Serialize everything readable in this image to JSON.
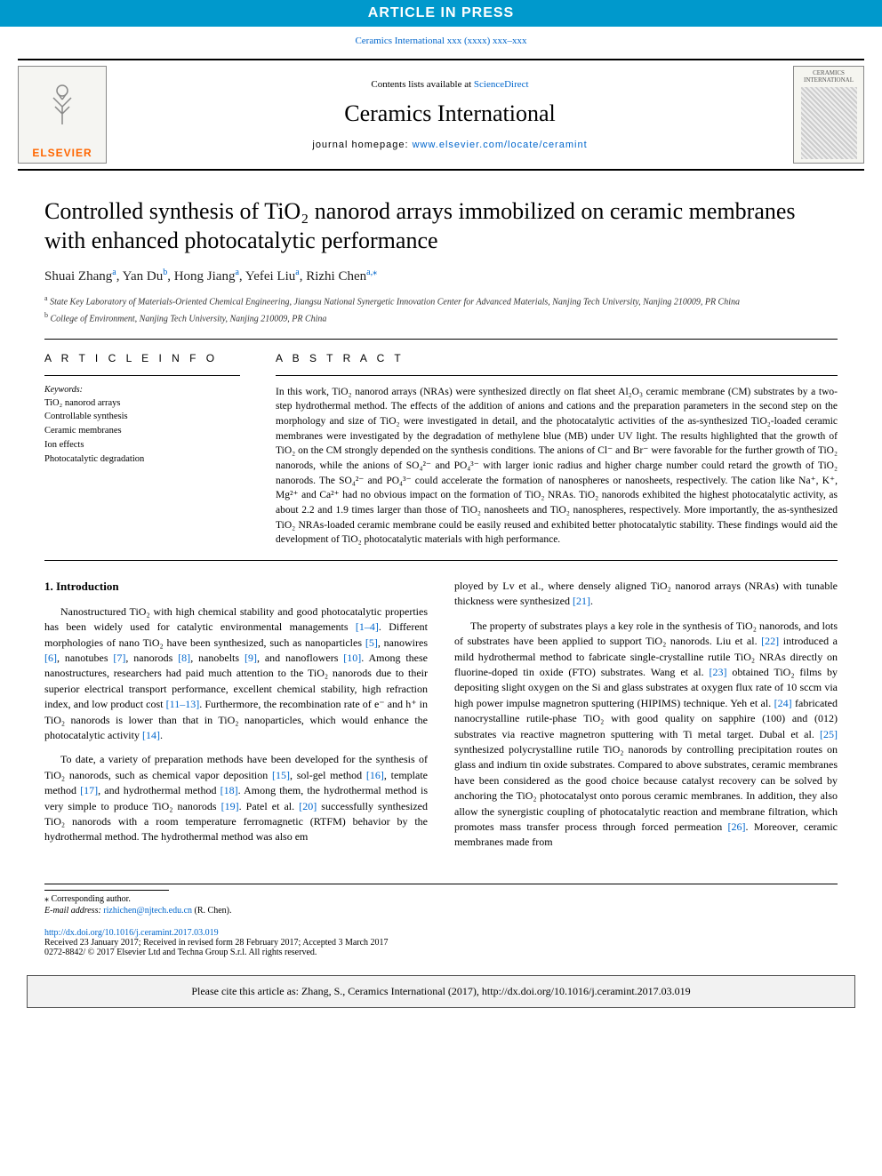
{
  "banner": "ARTICLE IN PRESS",
  "top_citation": "Ceramics International xxx (xxxx) xxx–xxx",
  "masthead": {
    "elsevier": "ELSEVIER",
    "contents_pre": "Contents lists available at ",
    "contents_link": "ScienceDirect",
    "journal": "Ceramics International",
    "homepage_pre": "journal homepage: ",
    "homepage_link": "www.elsevier.com/locate/ceramint",
    "cover_label": "CERAMICS INTERNATIONAL"
  },
  "title": "Controlled synthesis of TiO₂ nanorod arrays immobilized on ceramic membranes with enhanced photocatalytic performance",
  "authors_html": "Shuai Zhang<span class='sup'>a</span>, Yan Du<span class='sup'>b</span>, Hong Jiang<span class='sup'>a</span>, Yefei Liu<span class='sup'>a</span>, Rizhi Chen<span class='sup'>a,</span><span class='star'>⁎</span>",
  "affiliations": [
    {
      "sup": "a",
      "text": "State Key Laboratory of Materials-Oriented Chemical Engineering, Jiangsu National Synergetic Innovation Center for Advanced Materials, Nanjing Tech University, Nanjing 210009, PR China"
    },
    {
      "sup": "b",
      "text": "College of Environment, Nanjing Tech University, Nanjing 210009, PR China"
    }
  ],
  "article_info_head": "A R T I C L E  I N F O",
  "keywords_head": "Keywords:",
  "keywords": [
    "TiO₂ nanorod arrays",
    "Controllable synthesis",
    "Ceramic membranes",
    "Ion effects",
    "Photocatalytic degradation"
  ],
  "abstract_head": "A B S T R A C T",
  "abstract": "In this work, TiO₂ nanorod arrays (NRAs) were synthesized directly on flat sheet Al₂O₃ ceramic membrane (CM) substrates by a two-step hydrothermal method. The effects of the addition of anions and cations and the preparation parameters in the second step on the morphology and size of TiO₂ were investigated in detail, and the photocatalytic activities of the as-synthesized TiO₂-loaded ceramic membranes were investigated by the degradation of methylene blue (MB) under UV light. The results highlighted that the growth of TiO₂ on the CM strongly depended on the synthesis conditions. The anions of Cl⁻ and Br⁻ were favorable for the further growth of TiO₂ nanorods, while the anions of SO₄²⁻ and PO₄³⁻ with larger ionic radius and higher charge number could retard the growth of TiO₂ nanorods. The SO₄²⁻ and PO₄³⁻ could accelerate the formation of nanospheres or nanosheets, respectively. The cation like Na⁺, K⁺, Mg²⁺ and Ca²⁺ had no obvious impact on the formation of TiO₂ NRAs. TiO₂ nanorods exhibited the highest photocatalytic activity, as about 2.2 and 1.9 times larger than those of TiO₂ nanosheets and TiO₂ nanospheres, respectively. More importantly, the as-synthesized TiO₂ NRAs-loaded ceramic membrane could be easily reused and exhibited better photocatalytic stability. These findings would aid the development of TiO₂ photocatalytic materials with high performance.",
  "intro_head": "1. Introduction",
  "body": {
    "p1_pre": "Nanostructured TiO₂ with high chemical stability and good photocatalytic properties has been widely used for catalytic environmental managements ",
    "r1": "[1–4]",
    "p1_a": ". Different morphologies of nano TiO₂ have been synthesized, such as nanoparticles ",
    "r5": "[5]",
    "p1_b": ", nanowires ",
    "r6": "[6]",
    "p1_c": ", nanotubes ",
    "r7": "[7]",
    "p1_d": ", nanorods ",
    "r8": "[8]",
    "p1_e": ", nanobelts ",
    "r9": "[9]",
    "p1_f": ", and nanoflowers ",
    "r10": "[10]",
    "p1_g": ". Among these nanostructures, researchers had paid much attention to the TiO₂ nanorods due to their superior electrical transport performance, excellent chemical stability, high refraction index, and low product cost ",
    "r11": "[11–13]",
    "p1_h": ". Furthermore, the recombination rate of e⁻ and h⁺ in TiO₂ nanorods is lower than that in TiO₂ nanoparticles, which would enhance the photocatalytic activity ",
    "r14": "[14]",
    "p1_i": ".",
    "p2_a": "To date, a variety of preparation methods have been developed for the synthesis of TiO₂ nanorods, such as chemical vapor deposition ",
    "r15": "[15]",
    "p2_b": ", sol-gel method ",
    "r16": "[16]",
    "p2_c": ", template method ",
    "r17": "[17]",
    "p2_d": ", and hydrothermal method ",
    "r18": "[18]",
    "p2_e": ". Among them, the hydrothermal method is very simple to produce TiO₂ nanorods ",
    "r19": "[19]",
    "p2_f": ". Patel et al. ",
    "r20": "[20]",
    "p2_g": " successfully synthesized TiO₂ nanorods with a room temperature ferromagnetic (RTFM) behavior by the hydrothermal method. The hydrothermal method was also em",
    "p2_h": "ployed by Lv et al., where densely aligned TiO₂ nanorod arrays (NRAs) with tunable thickness were synthesized ",
    "r21": "[21]",
    "p2_i": ".",
    "p3_a": "The property of substrates plays a key role in the synthesis of TiO₂ nanorods, and lots of substrates have been applied to support TiO₂ nanorods. Liu et al. ",
    "r22": "[22]",
    "p3_b": " introduced a mild hydrothermal method to fabricate single-crystalline rutile TiO₂ NRAs directly on fluorine-doped tin oxide (FTO) substrates. Wang et al. ",
    "r23": "[23]",
    "p3_c": " obtained TiO₂ films by depositing slight oxygen on the Si and glass substrates at oxygen flux rate of 10 sccm via high power impulse magnetron sputtering (HIPIMS) technique. Yeh et al. ",
    "r24": "[24]",
    "p3_d": " fabricated nanocrystalline rutile-phase TiO₂ with good quality on sapphire (100) and (012) substrates via reactive magnetron sputtering with Ti metal target. Dubal et al. ",
    "r25": "[25]",
    "p3_e": " synthesized polycrystalline rutile TiO₂ nanorods by controlling precipitation routes on glass and indium tin oxide substrates. Compared to above substrates, ceramic membranes have been considered as the good choice because catalyst recovery can be solved by anchoring the TiO₂ photocatalyst onto porous ceramic membranes. In addition, they also allow the synergistic coupling of photocatalytic reaction and membrane filtration, which promotes mass transfer process through forced permeation ",
    "r26": "[26]",
    "p3_f": ". Moreover, ceramic membranes made from"
  },
  "footer": {
    "corr": "⁎ Corresponding author.",
    "email_label": "E-mail address: ",
    "email": "rizhichen@njtech.edu.cn",
    "email_post": " (R. Chen).",
    "doi": "http://dx.doi.org/10.1016/j.ceramint.2017.03.019",
    "received": "Received 23 January 2017; Received in revised form 28 February 2017; Accepted 3 March 2017",
    "copyright": "0272-8842/ © 2017 Elsevier Ltd and Techna Group S.r.l. All rights reserved."
  },
  "cite_box": "Please cite this article as: Zhang, S., Ceramics International (2017), http://dx.doi.org/10.1016/j.ceramint.2017.03.019",
  "colors": {
    "banner_bg": "#0099cc",
    "link": "#0066cc",
    "elsevier_orange": "#ff6600"
  }
}
